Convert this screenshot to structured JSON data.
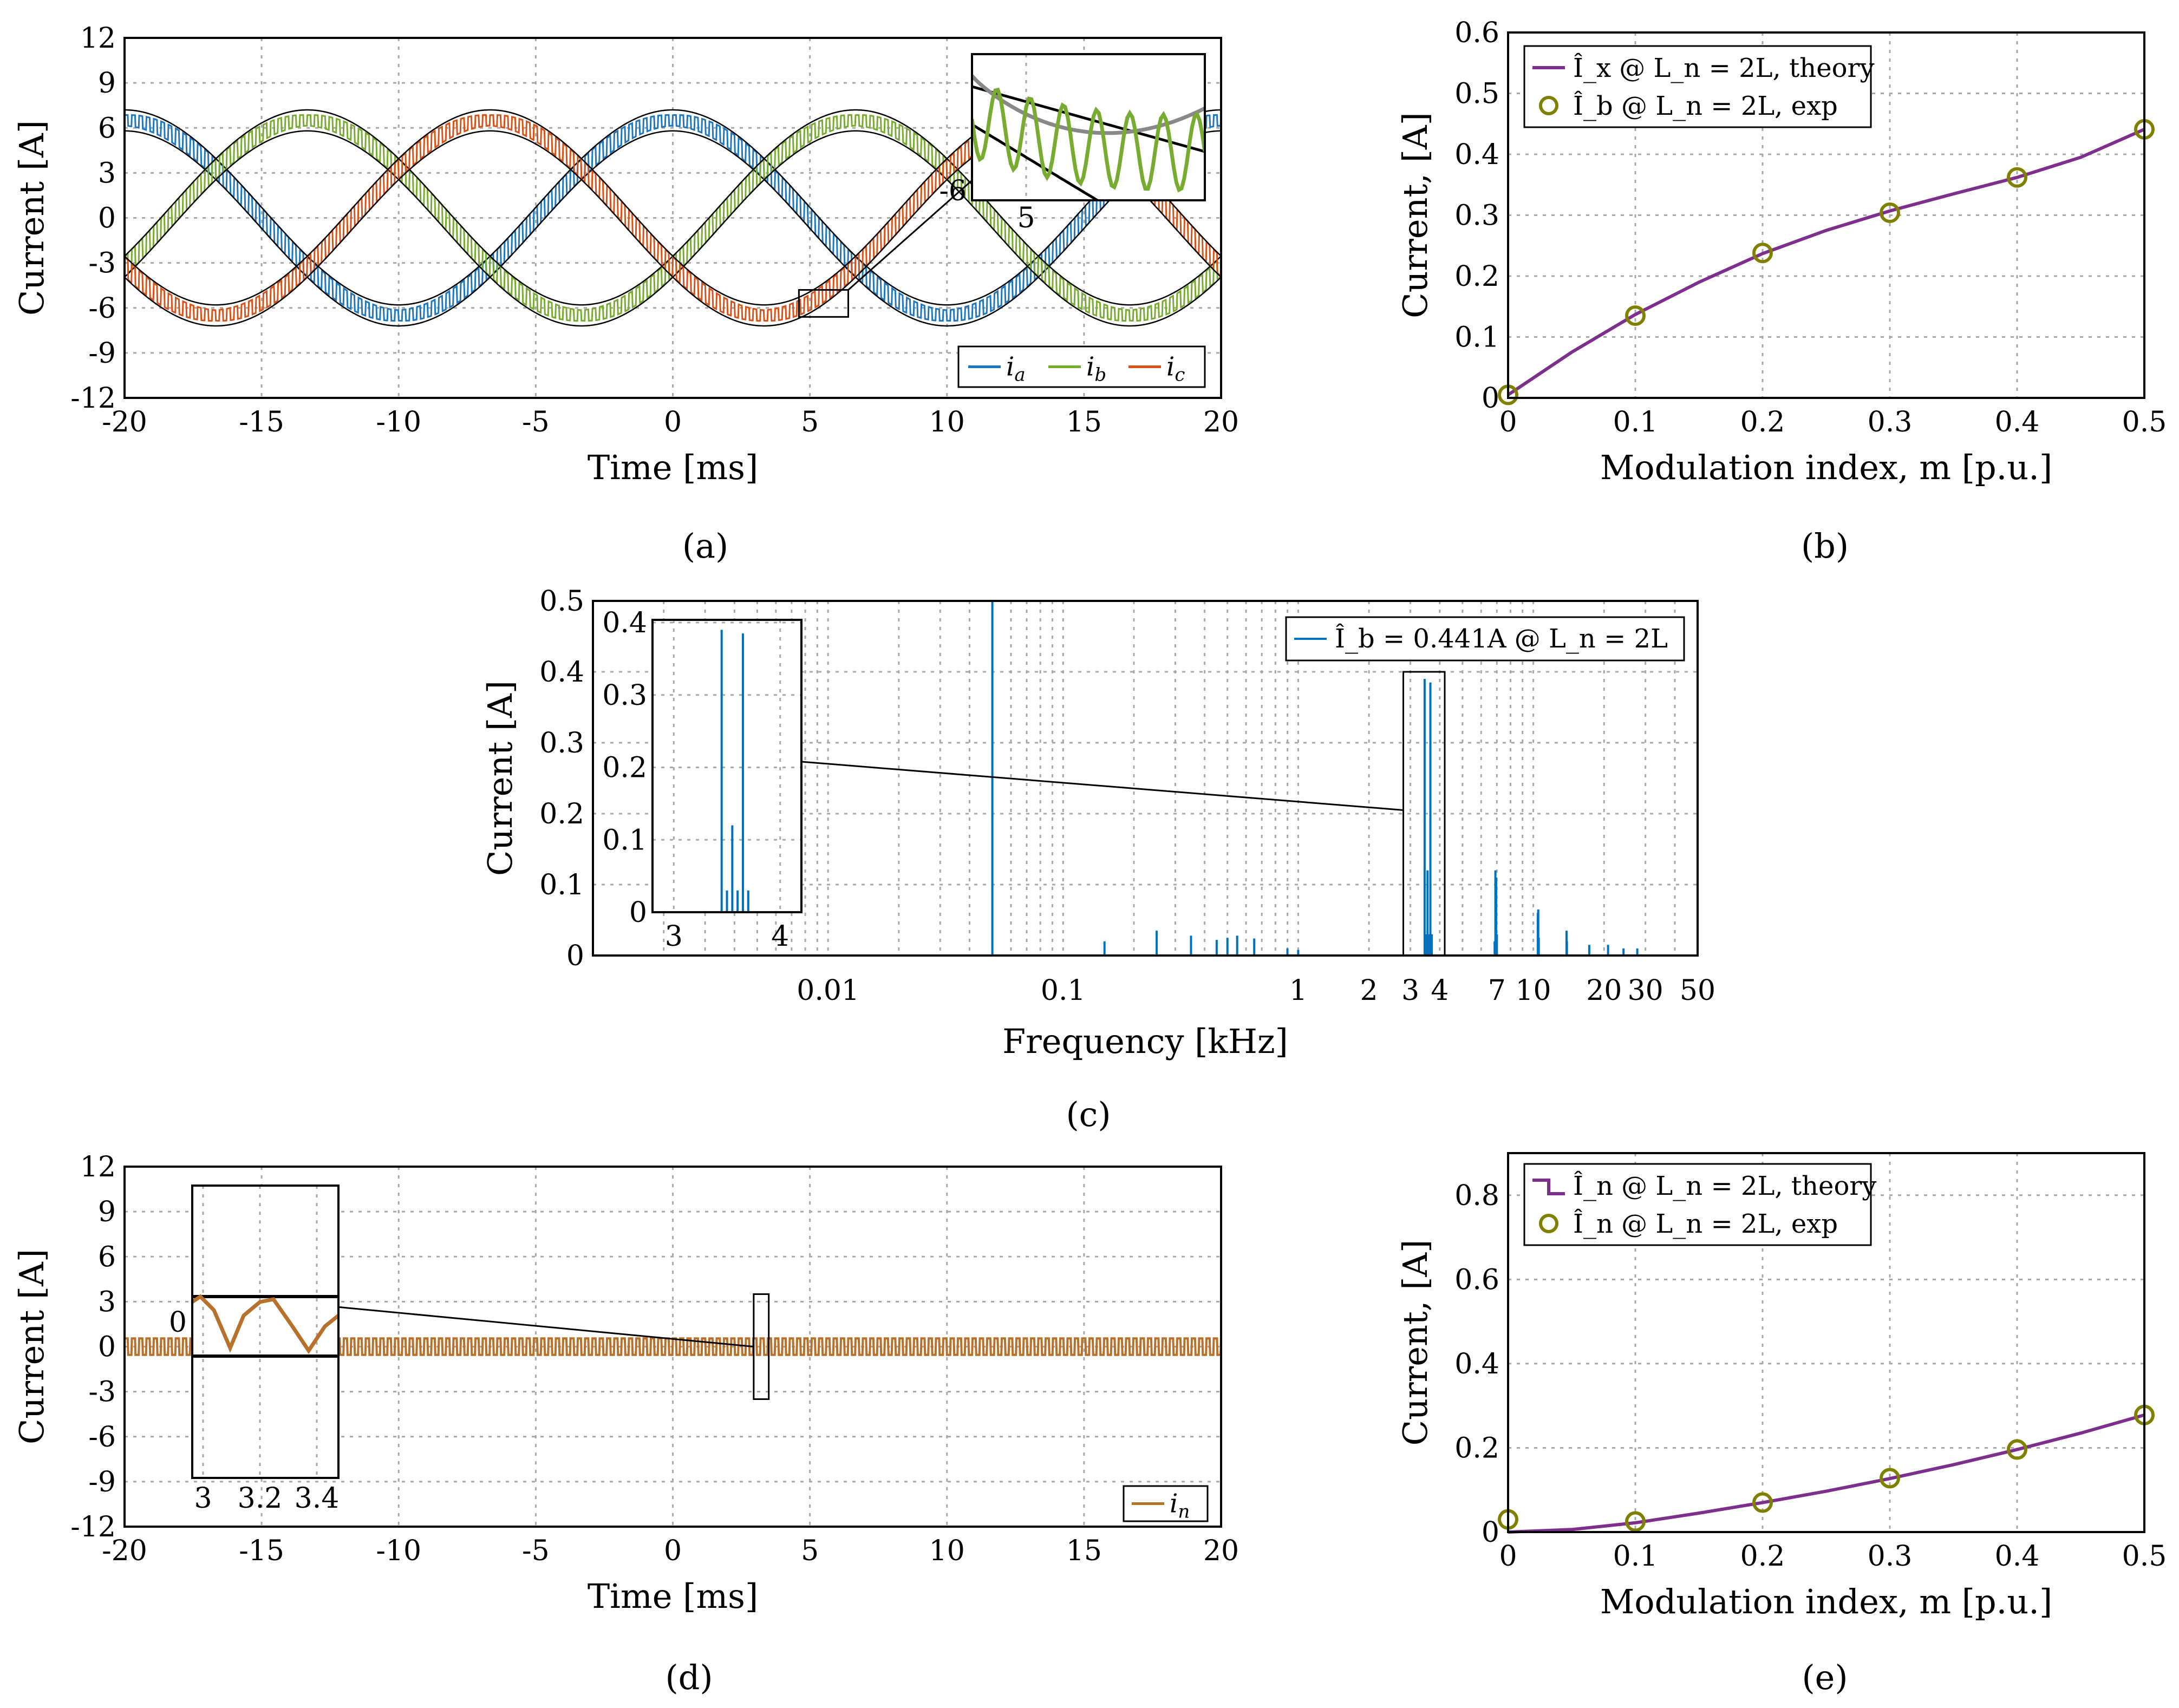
{
  "chart_data": [
    {
      "id": "a",
      "type": "line",
      "panel_label": "(a)",
      "xlabel": "Time [ms]",
      "ylabel": "Current [A]",
      "xlim": [
        -20,
        20
      ],
      "ylim": [
        -12,
        12
      ],
      "xticks": [
        "-20",
        "-15",
        "-10",
        "-5",
        "0",
        "5",
        "10",
        "15",
        "20"
      ],
      "yticks": [
        "12",
        "9",
        "6",
        "3",
        "0",
        "-3",
        "-6",
        "-9",
        "-12"
      ],
      "amplitude": 6.5,
      "ripple": 0.7,
      "period_ms": 20,
      "series": [
        {
          "name": "i_a",
          "label_base": "i",
          "label_sub": "a",
          "color": "#1f77bd",
          "phase_deg": 0
        },
        {
          "name": "i_b",
          "label_base": "i",
          "label_sub": "b",
          "color": "#77ac30",
          "phase_deg": -120
        },
        {
          "name": "i_c",
          "label_base": "i",
          "label_sub": "c",
          "color": "#d95319",
          "phase_deg": 120
        }
      ],
      "inset": {
        "xlim": [
          4.6,
          6.4
        ],
        "ylim": [
          -6.6,
          -4.8
        ],
        "xticks": [
          "5"
        ],
        "yticks": [
          "-6"
        ]
      }
    },
    {
      "id": "b",
      "type": "line",
      "panel_label": "(b)",
      "xlabel": "Modulation index, m [p.u.]",
      "ylabel": "Current, [A]",
      "xlim": [
        0,
        0.5
      ],
      "ylim": [
        0,
        0.6
      ],
      "xticks": [
        "0",
        "0.1",
        "0.2",
        "0.3",
        "0.4",
        "0.5"
      ],
      "yticks": [
        "0.6",
        "0.5",
        "0.4",
        "0.3",
        "0.2",
        "0.1",
        "0"
      ],
      "series": [
        {
          "name": "theory",
          "legend": "Î_x @ L_n = 2L, theory",
          "color": "#7e2f8e",
          "x": [
            0,
            0.05,
            0.1,
            0.15,
            0.2,
            0.25,
            0.3,
            0.35,
            0.4,
            0.45,
            0.5
          ],
          "y": [
            0.005,
            0.075,
            0.137,
            0.19,
            0.237,
            0.275,
            0.307,
            0.335,
            0.362,
            0.395,
            0.441
          ]
        },
        {
          "name": "exp",
          "legend": "Î_b @ L_n = 2L, exp",
          "color": "#808000",
          "x": [
            0,
            0.1,
            0.2,
            0.3,
            0.4,
            0.5
          ],
          "y": [
            0.005,
            0.135,
            0.238,
            0.304,
            0.362,
            0.441
          ]
        }
      ]
    },
    {
      "id": "c",
      "type": "bar",
      "panel_label": "(c)",
      "xlabel": "Frequency [kHz]",
      "ylabel": "Current [A]",
      "xscale": "log",
      "xlim": [
        0.001,
        50
      ],
      "ylim": [
        0,
        0.5
      ],
      "xticks": [
        {
          "v": 0.01,
          "t": "0.01"
        },
        {
          "v": 0.1,
          "t": "0.1"
        },
        {
          "v": 1,
          "t": "1"
        },
        {
          "v": 2,
          "t": "2"
        },
        {
          "v": 3,
          "t": "3"
        },
        {
          "v": 4,
          "t": "4"
        },
        {
          "v": 7,
          "t": "7"
        },
        {
          "v": 10,
          "t": "10"
        },
        {
          "v": 20,
          "t": "20"
        },
        {
          "v": 30,
          "t": "30"
        },
        {
          "v": 50,
          "t": "50"
        }
      ],
      "yticks": [
        "0.5",
        "0.4",
        "0.3",
        "0.2",
        "0.1",
        "0"
      ],
      "legend": "Î_b = 0.441A @ L_n = 2L",
      "color": "#0072bd",
      "freqs_khz": [
        0.05,
        0.15,
        0.25,
        0.35,
        0.45,
        0.5,
        0.55,
        0.65,
        0.9,
        1.0,
        3.45,
        3.5,
        3.55,
        3.6,
        3.65,
        3.7,
        6.85,
        6.9,
        6.95,
        7.0,
        10.45,
        10.5,
        10.55,
        13.85,
        13.9,
        17.3,
        20.8,
        24.2,
        27.7
      ],
      "amps_a": [
        0.5,
        0.02,
        0.035,
        0.028,
        0.022,
        0.025,
        0.028,
        0.024,
        0.01,
        0.008,
        0.39,
        0.03,
        0.12,
        0.03,
        0.385,
        0.03,
        0.02,
        0.12,
        0.11,
        0.03,
        0.06,
        0.065,
        0.025,
        0.035,
        0.02,
        0.015,
        0.015,
        0.01,
        0.01
      ],
      "inset": {
        "xlim": [
          2.8,
          4.2
        ],
        "ylim": [
          0,
          0.4
        ],
        "xticks": [
          "3",
          "4"
        ],
        "yticks": [
          "0.4",
          "0.3",
          "0.2",
          "0.1",
          "0"
        ]
      }
    },
    {
      "id": "d",
      "type": "line",
      "panel_label": "(d)",
      "xlabel": "Time [ms]",
      "ylabel": "Current [A]",
      "xlim": [
        -20,
        20
      ],
      "ylim": [
        -12,
        12
      ],
      "xticks": [
        "-20",
        "-15",
        "-10",
        "-5",
        "0",
        "5",
        "10",
        "15",
        "20"
      ],
      "yticks": [
        "12",
        "9",
        "6",
        "3",
        "0",
        "-3",
        "-6",
        "-9",
        "-12"
      ],
      "ripple": 0.55,
      "series": [
        {
          "name": "i_n",
          "label_base": "i",
          "label_sub": "n",
          "color": "#b8702a"
        }
      ],
      "inset": {
        "xlim": [
          2.95,
          3.5
        ],
        "xticks": [
          "3",
          "3.2",
          "3.4"
        ],
        "yticks": [
          "0"
        ]
      }
    },
    {
      "id": "e",
      "type": "line",
      "panel_label": "(e)",
      "xlabel": "Modulation index, m [p.u.]",
      "ylabel": "Current, [A]",
      "xlim": [
        0,
        0.5
      ],
      "ylim": [
        0,
        0.9
      ],
      "xticks": [
        "0",
        "0.1",
        "0.2",
        "0.3",
        "0.4",
        "0.5"
      ],
      "yticks": [
        "0.8",
        "0.6",
        "0.4",
        "0.2",
        "0"
      ],
      "series": [
        {
          "name": "theory",
          "legend": "Î_n @ L_n = 2L, theory",
          "color": "#7e2f8e",
          "x": [
            0,
            0.05,
            0.1,
            0.15,
            0.2,
            0.25,
            0.3,
            0.35,
            0.4,
            0.45,
            0.5
          ],
          "y": [
            0,
            0.006,
            0.022,
            0.045,
            0.07,
            0.097,
            0.127,
            0.16,
            0.196,
            0.235,
            0.278
          ]
        },
        {
          "name": "exp",
          "legend": "Î_n @ L_n = 2L, exp",
          "color": "#808000",
          "x": [
            0,
            0.1,
            0.2,
            0.3,
            0.4,
            0.5
          ],
          "y": [
            0.03,
            0.025,
            0.07,
            0.128,
            0.196,
            0.278
          ]
        }
      ]
    }
  ]
}
